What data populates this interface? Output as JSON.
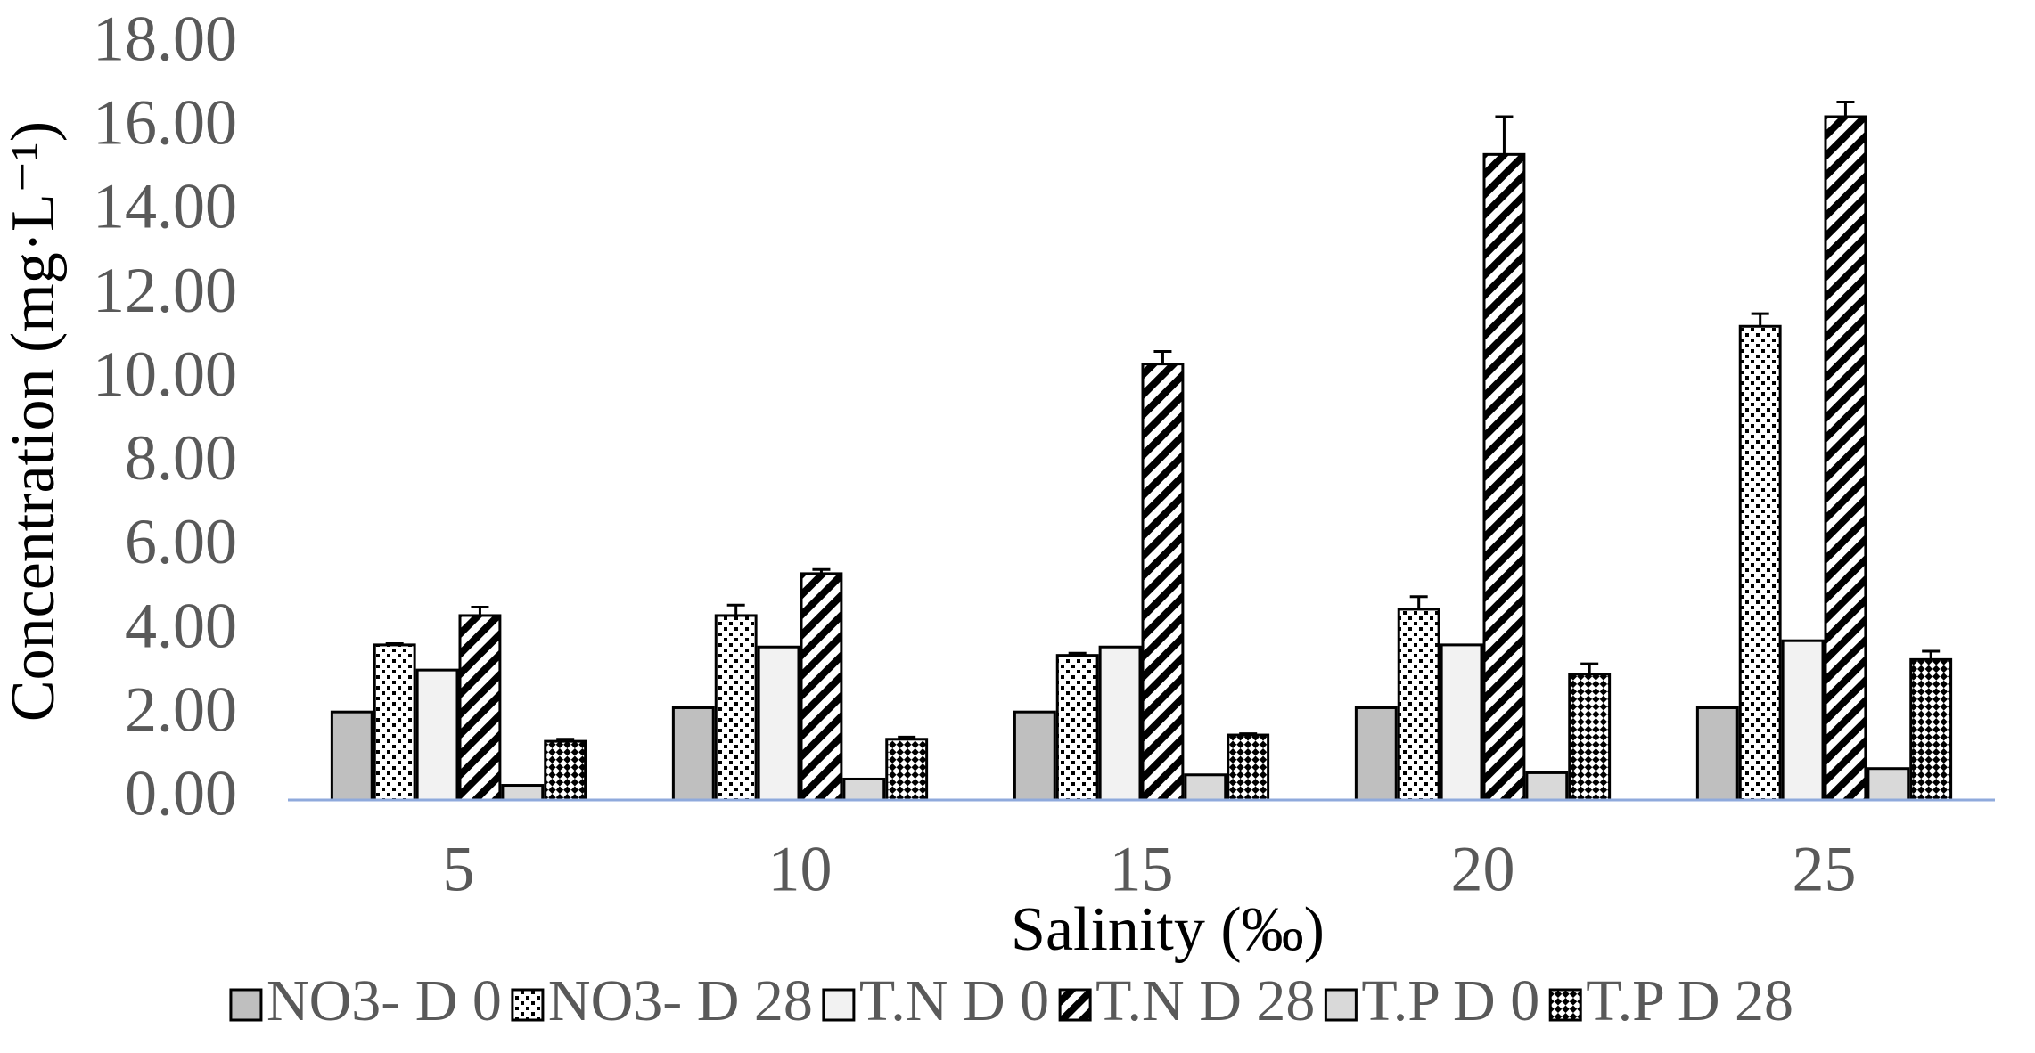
{
  "chart_data": {
    "type": "bar",
    "y_label": "Concentration (mg·L⁻¹)",
    "x_label": "Salinity (‰)",
    "categories": [
      "5",
      "10",
      "15",
      "20",
      "25"
    ],
    "series": [
      {
        "name": "NO3- D 0",
        "color": "#bfbfbf",
        "values": [
          2.1,
          2.2,
          2.1,
          2.2,
          2.2
        ]
      },
      {
        "name": "NO3- D 28",
        "color": "#ffffff",
        "pattern": "dots",
        "values": [
          3.7,
          4.4,
          3.45,
          4.55,
          11.3
        ],
        "errors": [
          0.03,
          0.25,
          0.05,
          0.3,
          0.3
        ]
      },
      {
        "name": "T.N D 0",
        "color": "#f2f2f2",
        "values": [
          3.1,
          3.65,
          3.65,
          3.7,
          3.8
        ]
      },
      {
        "name": "T.N D 28",
        "color": "#ffffff",
        "pattern": "hatch",
        "values": [
          4.4,
          5.4,
          10.4,
          15.4,
          16.3
        ],
        "errors": [
          0.2,
          0.1,
          0.3,
          0.9,
          0.35
        ]
      },
      {
        "name": "T.P D 0",
        "color": "#d9d9d9",
        "values": [
          0.35,
          0.5,
          0.6,
          0.65,
          0.75
        ]
      },
      {
        "name": "T.P D 28",
        "color": "#ffffff",
        "pattern": "checker",
        "values": [
          1.4,
          1.45,
          1.55,
          3.0,
          3.35
        ],
        "errors": [
          0.05,
          0.05,
          0.03,
          0.25,
          0.2
        ]
      }
    ],
    "ylim": [
      0,
      18
    ],
    "yticks": [
      {
        "value": 0,
        "label": "0.00"
      },
      {
        "value": 2,
        "label": "2.00"
      },
      {
        "value": 4,
        "label": "4.00"
      },
      {
        "value": 6,
        "label": "6.00"
      },
      {
        "value": 8,
        "label": "8.00"
      },
      {
        "value": 10,
        "label": "10.00"
      },
      {
        "value": 12,
        "label": "12.00"
      },
      {
        "value": 14,
        "label": "14.00"
      },
      {
        "value": 16,
        "label": "16.00"
      },
      {
        "value": 18,
        "label": "18.00"
      }
    ],
    "grid": false,
    "legend": "bottom"
  }
}
